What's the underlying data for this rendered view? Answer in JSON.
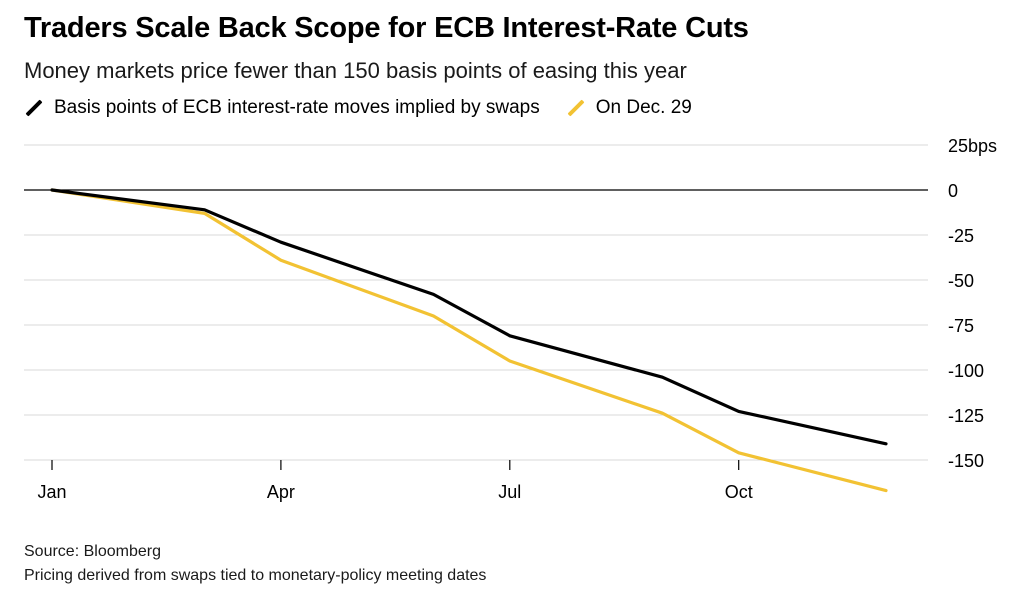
{
  "header": {
    "title": "Traders Scale Back Scope for ECB Interest-Rate Cuts",
    "subtitle": "Money markets price fewer than 150 basis points of easing this year"
  },
  "footer": {
    "source": "Source: Bloomberg",
    "note": "Pricing derived from swaps tied to monetary-policy meeting dates"
  },
  "colors": {
    "black_series": "#000000",
    "yellow_series": "#f2c233",
    "grid": "#d9d9d9"
  },
  "chart_data": {
    "type": "line",
    "x_tick_labels": [
      "Jan",
      "Apr",
      "Jul",
      "Oct"
    ],
    "y_tick_labels": [
      "25bps",
      "0",
      "-25",
      "-50",
      "-75",
      "-100",
      "-125",
      "-150"
    ],
    "ylim": [
      -150,
      25
    ],
    "grid": true,
    "legend_position": "top-left",
    "x": [
      "Jan",
      "Mar",
      "Apr",
      "Jun",
      "Jul",
      "Sep",
      "Oct",
      "Dec"
    ],
    "series": [
      {
        "name": "Basis points of ECB interest-rate moves implied by swaps",
        "color": "#000000",
        "values": [
          0,
          -11,
          -29,
          -58,
          -81,
          -104,
          -123,
          -141
        ]
      },
      {
        "name": "On Dec. 29",
        "color": "#f2c233",
        "values": [
          0,
          -13,
          -39,
          -70,
          -95,
          -124,
          -146,
          -167
        ]
      }
    ]
  }
}
